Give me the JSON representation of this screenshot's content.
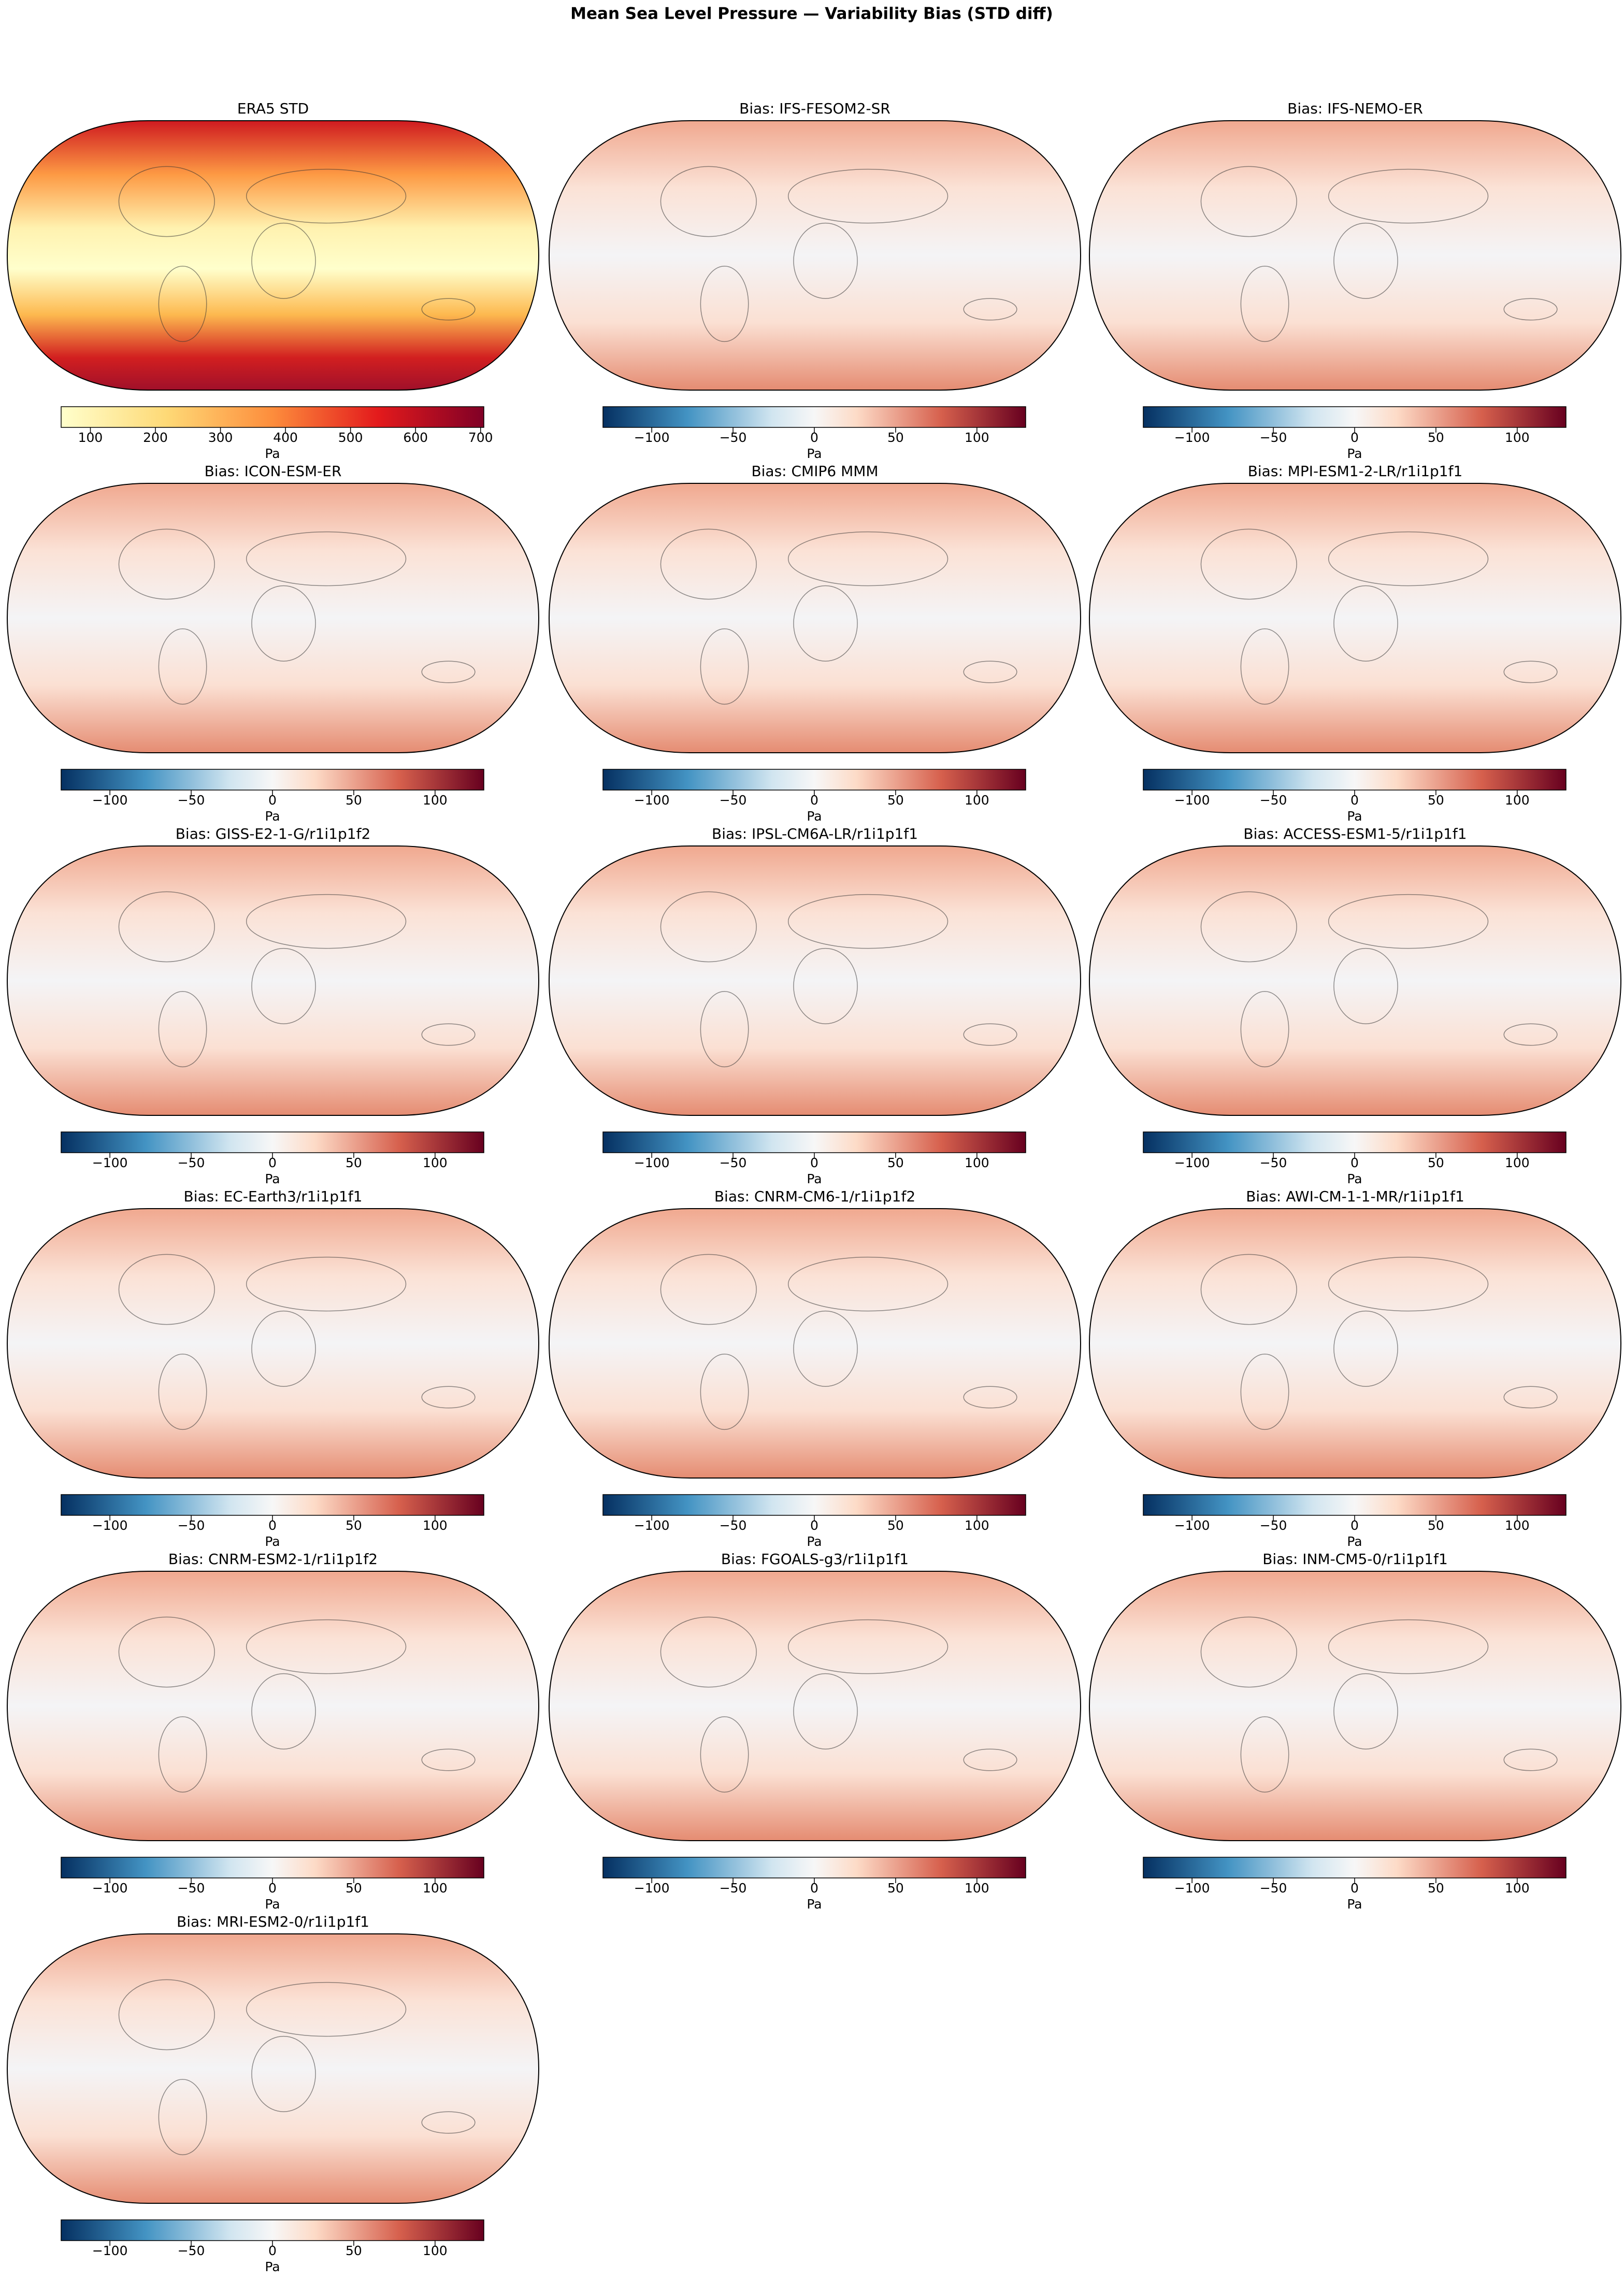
{
  "title": "Mean Sea Level Pressure — Variability Bias (STD diff)",
  "panels": [
    {
      "title": "ERA5 STD",
      "colorbar": {
        "label": "Pa",
        "colormap": "YlOrRd",
        "lim": [
          55,
          705
        ],
        "ticks": [
          100,
          200,
          300,
          400,
          500,
          600,
          700
        ]
      }
    },
    {
      "title": "Bias: IFS-FESOM2-SR",
      "colorbar": {
        "label": "Pa",
        "colormap": "RdBu_r",
        "lim": [
          -130,
          130
        ],
        "ticks": [
          {
            "value": -100,
            "label": "−100"
          },
          {
            "value": -50,
            "label": "−50"
          },
          0,
          50,
          100
        ]
      }
    },
    {
      "title": "Bias: IFS-NEMO-ER",
      "colorbar": {
        "label": "Pa",
        "colormap": "RdBu_r",
        "lim": [
          -130,
          130
        ],
        "ticks": [
          {
            "value": -100,
            "label": "−100"
          },
          {
            "value": -50,
            "label": "−50"
          },
          0,
          50,
          100
        ]
      }
    },
    {
      "title": "Bias: ICON-ESM-ER",
      "colorbar": {
        "label": "Pa",
        "colormap": "RdBu_r",
        "lim": [
          -130,
          130
        ],
        "ticks": [
          {
            "value": -100,
            "label": "−100"
          },
          {
            "value": -50,
            "label": "−50"
          },
          0,
          50,
          100
        ]
      }
    },
    {
      "title": "Bias: CMIP6 MMM",
      "colorbar": {
        "label": "Pa",
        "colormap": "RdBu_r",
        "lim": [
          -130,
          130
        ],
        "ticks": [
          {
            "value": -100,
            "label": "−100"
          },
          {
            "value": -50,
            "label": "−50"
          },
          0,
          50,
          100
        ]
      }
    },
    {
      "title": "Bias: MPI-ESM1-2-LR/r1i1p1f1",
      "colorbar": {
        "label": "Pa",
        "colormap": "RdBu_r",
        "lim": [
          -130,
          130
        ],
        "ticks": [
          {
            "value": -100,
            "label": "−100"
          },
          {
            "value": -50,
            "label": "−50"
          },
          0,
          50,
          100
        ]
      }
    },
    {
      "title": "Bias: GISS-E2-1-G/r1i1p1f2",
      "colorbar": {
        "label": "Pa",
        "colormap": "RdBu_r",
        "lim": [
          -130,
          130
        ],
        "ticks": [
          {
            "value": -100,
            "label": "−100"
          },
          {
            "value": -50,
            "label": "−50"
          },
          0,
          50,
          100
        ]
      }
    },
    {
      "title": "Bias: IPSL-CM6A-LR/r1i1p1f1",
      "colorbar": {
        "label": "Pa",
        "colormap": "RdBu_r",
        "lim": [
          -130,
          130
        ],
        "ticks": [
          {
            "value": -100,
            "label": "−100"
          },
          {
            "value": -50,
            "label": "−50"
          },
          0,
          50,
          100
        ]
      }
    },
    {
      "title": "Bias: ACCESS-ESM1-5/r1i1p1f1",
      "colorbar": {
        "label": "Pa",
        "colormap": "RdBu_r",
        "lim": [
          -130,
          130
        ],
        "ticks": [
          {
            "value": -100,
            "label": "−100"
          },
          {
            "value": -50,
            "label": "−50"
          },
          0,
          50,
          100
        ]
      }
    },
    {
      "title": "Bias: EC-Earth3/r1i1p1f1",
      "colorbar": {
        "label": "Pa",
        "colormap": "RdBu_r",
        "lim": [
          -130,
          130
        ],
        "ticks": [
          {
            "value": -100,
            "label": "−100"
          },
          {
            "value": -50,
            "label": "−50"
          },
          0,
          50,
          100
        ]
      }
    },
    {
      "title": "Bias: CNRM-CM6-1/r1i1p1f2",
      "colorbar": {
        "label": "Pa",
        "colormap": "RdBu_r",
        "lim": [
          -130,
          130
        ],
        "ticks": [
          {
            "value": -100,
            "label": "−100"
          },
          {
            "value": -50,
            "label": "−50"
          },
          0,
          50,
          100
        ]
      }
    },
    {
      "title": "Bias: AWI-CM-1-1-MR/r1i1p1f1",
      "colorbar": {
        "label": "Pa",
        "colormap": "RdBu_r",
        "lim": [
          -130,
          130
        ],
        "ticks": [
          {
            "value": -100,
            "label": "−100"
          },
          {
            "value": -50,
            "label": "−50"
          },
          0,
          50,
          100
        ]
      }
    },
    {
      "title": "Bias: CNRM-ESM2-1/r1i1p1f2",
      "colorbar": {
        "label": "Pa",
        "colormap": "RdBu_r",
        "lim": [
          -130,
          130
        ],
        "ticks": [
          {
            "value": -100,
            "label": "−100"
          },
          {
            "value": -50,
            "label": "−50"
          },
          0,
          50,
          100
        ]
      }
    },
    {
      "title": "Bias: FGOALS-g3/r1i1p1f1",
      "colorbar": {
        "label": "Pa",
        "colormap": "RdBu_r",
        "lim": [
          -130,
          130
        ],
        "ticks": [
          {
            "value": -100,
            "label": "−100"
          },
          {
            "value": -50,
            "label": "−50"
          },
          0,
          50,
          100
        ]
      }
    },
    {
      "title": "Bias: INM-CM5-0/r1i1p1f1",
      "colorbar": {
        "label": "Pa",
        "colormap": "RdBu_r",
        "lim": [
          -130,
          130
        ],
        "ticks": [
          {
            "value": -100,
            "label": "−100"
          },
          {
            "value": -50,
            "label": "−50"
          },
          0,
          50,
          100
        ]
      }
    },
    {
      "title": "Bias: MRI-ESM2-0/r1i1p1f1",
      "colorbar": {
        "label": "Pa",
        "colormap": "RdBu_r",
        "lim": [
          -130,
          130
        ],
        "ticks": [
          {
            "value": -100,
            "label": "−100"
          },
          {
            "value": -50,
            "label": "−50"
          },
          0,
          50,
          100
        ]
      }
    }
  ]
}
